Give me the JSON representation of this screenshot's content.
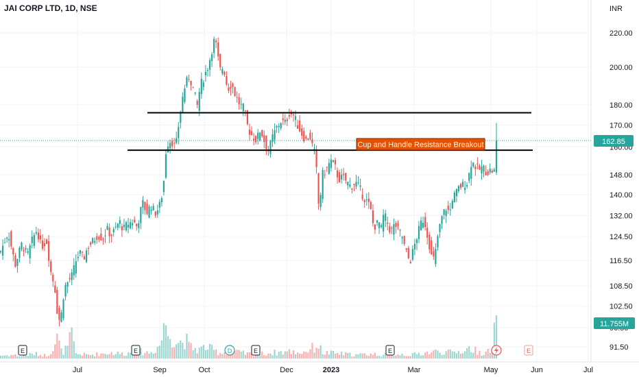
{
  "chart_data": {
    "type": "candlestick",
    "title": "JAI CORP LTD, 1D, NSE",
    "currency": "INR",
    "y_scale": "log",
    "ylim": [
      88.5,
      236
    ],
    "y_ticks": [
      "220.00",
      "200.00",
      "180.00",
      "170.00",
      "160.00",
      "148.00",
      "140.00",
      "132.00",
      "124.50",
      "116.50",
      "108.50",
      "102.50",
      "96.50",
      "91.50"
    ],
    "x_ticks": [
      "Jul",
      "Sep",
      "Oct",
      "Dec",
      "2023",
      "Mar",
      "May",
      "Jun",
      "Jul"
    ],
    "last_price": "162.85",
    "last_volume": "11.755M",
    "colors": {
      "up": "#26a69a",
      "down": "#ef5350",
      "price_label": "#26a69a",
      "annotation": "#e65100",
      "line": "#000000"
    },
    "annotation": "Cup and Handle Resistance Breakout",
    "lines": [
      {
        "name": "upper resistance",
        "price": 176
      },
      {
        "name": "lower resistance",
        "price": 158.5
      }
    ],
    "event_markers": [
      "E",
      "E",
      "D",
      "E",
      "E",
      "E"
    ],
    "future_event_marker": "E",
    "price_path": [
      [
        0,
        119
      ],
      [
        12,
        126
      ],
      [
        22,
        115
      ],
      [
        32,
        122
      ],
      [
        40,
        118
      ],
      [
        48,
        124
      ],
      [
        54,
        127
      ],
      [
        60,
        121
      ],
      [
        68,
        123
      ],
      [
        74,
        113
      ],
      [
        80,
        108
      ],
      [
        84,
        100
      ],
      [
        88,
        98
      ],
      [
        94,
        108
      ],
      [
        100,
        110
      ],
      [
        106,
        112
      ],
      [
        110,
        116
      ],
      [
        116,
        119
      ],
      [
        122,
        117
      ],
      [
        128,
        121
      ],
      [
        136,
        123
      ],
      [
        142,
        125
      ],
      [
        150,
        124
      ],
      [
        156,
        127
      ],
      [
        162,
        125
      ],
      [
        168,
        127
      ],
      [
        174,
        130
      ],
      [
        180,
        127
      ],
      [
        186,
        129
      ],
      [
        194,
        130
      ],
      [
        200,
        128
      ],
      [
        208,
        137
      ],
      [
        214,
        133
      ],
      [
        220,
        136
      ],
      [
        226,
        133
      ],
      [
        232,
        135
      ],
      [
        238,
        142
      ],
      [
        242,
        158
      ],
      [
        246,
        163
      ],
      [
        252,
        162
      ],
      [
        256,
        159
      ],
      [
        262,
        174
      ],
      [
        266,
        183
      ],
      [
        270,
        190
      ],
      [
        276,
        195
      ],
      [
        282,
        188
      ],
      [
        288,
        179
      ],
      [
        292,
        190
      ],
      [
        296,
        193
      ],
      [
        300,
        197
      ],
      [
        304,
        201
      ],
      [
        308,
        208
      ],
      [
        312,
        215
      ],
      [
        316,
        212
      ],
      [
        320,
        198
      ],
      [
        326,
        200
      ],
      [
        332,
        188
      ],
      [
        338,
        191
      ],
      [
        344,
        184
      ],
      [
        350,
        180
      ],
      [
        356,
        178
      ],
      [
        362,
        168
      ],
      [
        368,
        165
      ],
      [
        374,
        163
      ],
      [
        380,
        168
      ],
      [
        386,
        162
      ],
      [
        392,
        158
      ],
      [
        398,
        165
      ],
      [
        404,
        169
      ],
      [
        410,
        172
      ],
      [
        416,
        171
      ],
      [
        422,
        176
      ],
      [
        428,
        175
      ],
      [
        434,
        170
      ],
      [
        440,
        166
      ],
      [
        446,
        163
      ],
      [
        452,
        165
      ],
      [
        456,
        160
      ],
      [
        460,
        156
      ],
      [
        462,
        148
      ],
      [
        464,
        138
      ],
      [
        466,
        133
      ],
      [
        468,
        142
      ],
      [
        470,
        148
      ],
      [
        476,
        150
      ],
      [
        482,
        154
      ],
      [
        488,
        152
      ],
      [
        494,
        146
      ],
      [
        500,
        147
      ],
      [
        506,
        145
      ],
      [
        512,
        143
      ],
      [
        518,
        145
      ],
      [
        524,
        143
      ],
      [
        530,
        139
      ],
      [
        536,
        137
      ],
      [
        540,
        135
      ],
      [
        544,
        129
      ],
      [
        548,
        128
      ],
      [
        552,
        130
      ],
      [
        556,
        127
      ],
      [
        560,
        133
      ],
      [
        564,
        130
      ],
      [
        570,
        126
      ],
      [
        576,
        129
      ],
      [
        580,
        127
      ],
      [
        586,
        125
      ],
      [
        590,
        121
      ],
      [
        594,
        118
      ],
      [
        598,
        116
      ],
      [
        604,
        121
      ],
      [
        610,
        126
      ],
      [
        616,
        131
      ],
      [
        620,
        129
      ],
      [
        626,
        122
      ],
      [
        630,
        117
      ],
      [
        634,
        117
      ],
      [
        638,
        124
      ],
      [
        644,
        131
      ],
      [
        650,
        135
      ],
      [
        656,
        133
      ],
      [
        660,
        139
      ],
      [
        664,
        140
      ],
      [
        670,
        143
      ],
      [
        676,
        144
      ],
      [
        682,
        145
      ],
      [
        688,
        154
      ],
      [
        692,
        152
      ],
      [
        698,
        150
      ],
      [
        704,
        151
      ],
      [
        710,
        149
      ],
      [
        716,
        150
      ],
      [
        720,
        149
      ],
      [
        722,
        150
      ],
      [
        724,
        162.85
      ]
    ],
    "volume_path": [
      [
        0,
        5
      ],
      [
        20,
        6
      ],
      [
        30,
        4
      ],
      [
        50,
        8
      ],
      [
        70,
        5
      ],
      [
        84,
        35
      ],
      [
        90,
        10
      ],
      [
        100,
        20
      ],
      [
        104,
        45
      ],
      [
        110,
        8
      ],
      [
        130,
        6
      ],
      [
        160,
        10
      ],
      [
        180,
        8
      ],
      [
        200,
        12
      ],
      [
        220,
        10
      ],
      [
        235,
        25
      ],
      [
        238,
        55
      ],
      [
        240,
        80
      ],
      [
        242,
        45
      ],
      [
        250,
        40
      ],
      [
        258,
        30
      ],
      [
        266,
        28
      ],
      [
        270,
        35
      ],
      [
        276,
        20
      ],
      [
        290,
        15
      ],
      [
        300,
        20
      ],
      [
        320,
        10
      ],
      [
        340,
        12
      ],
      [
        360,
        8
      ],
      [
        380,
        8
      ],
      [
        400,
        10
      ],
      [
        420,
        12
      ],
      [
        440,
        10
      ],
      [
        460,
        20
      ],
      [
        464,
        25
      ],
      [
        470,
        10
      ],
      [
        500,
        8
      ],
      [
        520,
        6
      ],
      [
        540,
        8
      ],
      [
        560,
        6
      ],
      [
        580,
        8
      ],
      [
        600,
        6
      ],
      [
        620,
        10
      ],
      [
        640,
        12
      ],
      [
        660,
        10
      ],
      [
        680,
        15
      ],
      [
        686,
        18
      ],
      [
        700,
        10
      ],
      [
        718,
        12
      ],
      [
        722,
        60
      ],
      [
        724,
        50
      ]
    ]
  }
}
